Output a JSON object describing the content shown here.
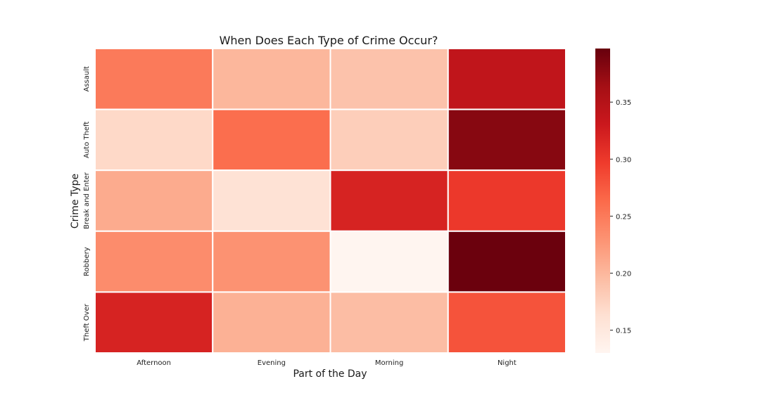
{
  "chart_data": {
    "type": "heatmap",
    "title": "When Does Each Type of Crime Occur?",
    "xlabel": "Part of the Day",
    "ylabel": "Crime Type",
    "x_categories": [
      "Afternoon",
      "Evening",
      "Morning",
      "Night"
    ],
    "y_categories": [
      "Assault",
      "Auto Theft",
      "Break and Enter",
      "Robbery",
      "Theft Over"
    ],
    "values": [
      [
        0.25,
        0.2,
        0.19,
        0.34
      ],
      [
        0.17,
        0.26,
        0.18,
        0.38
      ],
      [
        0.21,
        0.16,
        0.32,
        0.3
      ],
      [
        0.235,
        0.23,
        0.13,
        0.395
      ],
      [
        0.32,
        0.205,
        0.195,
        0.28
      ]
    ],
    "colorbar": {
      "vmin": 0.13,
      "vmax": 0.397,
      "ticks": [
        "0.15",
        "0.20",
        "0.25",
        "0.30",
        "0.35"
      ],
      "colormap": "Reds"
    },
    "grid": false,
    "cell_border_color": "#ffffff"
  }
}
